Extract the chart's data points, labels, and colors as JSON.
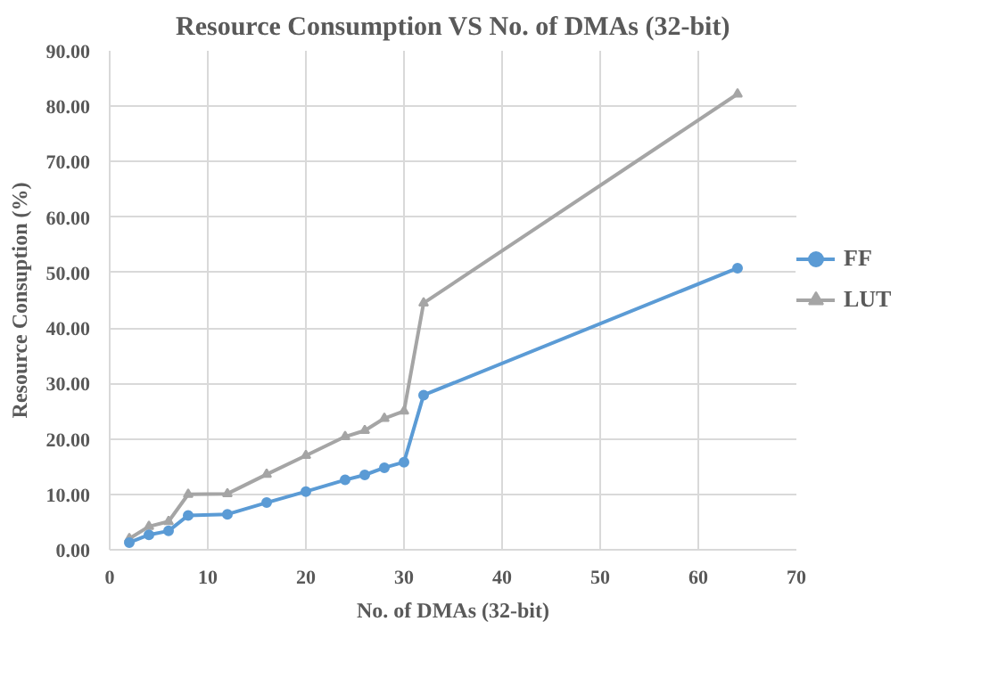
{
  "chart_data": {
    "type": "line",
    "title": "Resource Consumption VS No. of DMAs (32-bit)",
    "xlabel": "No. of DMAs (32-bit)",
    "ylabel": "Resource Consuption (%)",
    "x": [
      2,
      4,
      6,
      8,
      12,
      16,
      20,
      24,
      26,
      28,
      30,
      32,
      64
    ],
    "series": [
      {
        "name": "FF",
        "color": "#5b9bd5",
        "marker": "circle",
        "values": [
          1.3,
          2.7,
          3.4,
          6.2,
          6.4,
          8.5,
          10.5,
          12.6,
          13.5,
          14.8,
          15.8,
          27.9,
          50.8
        ]
      },
      {
        "name": "LUT",
        "color": "#a5a5a5",
        "marker": "triangle",
        "values": [
          2.0,
          4.2,
          5.1,
          10.0,
          10.1,
          13.6,
          17.0,
          20.4,
          21.5,
          23.7,
          25.0,
          44.5,
          82.2
        ]
      }
    ],
    "xlim": [
      0,
      70
    ],
    "xticks": [
      0,
      10,
      20,
      30,
      40,
      50,
      60,
      70
    ],
    "ylim": [
      0,
      90
    ],
    "yticks": [
      {
        "value": 0,
        "label": "0.00"
      },
      {
        "value": 10,
        "label": "10.00"
      },
      {
        "value": 20,
        "label": "20.00"
      },
      {
        "value": 30,
        "label": "30.00"
      },
      {
        "value": 40,
        "label": "40.00"
      },
      {
        "value": 50,
        "label": "50.00"
      },
      {
        "value": 60,
        "label": "60.00"
      },
      {
        "value": 70,
        "label": "70.00"
      },
      {
        "value": 80,
        "label": "80.00"
      },
      {
        "value": 90,
        "label": "90.00"
      }
    ],
    "grid": true,
    "legend": "right",
    "line_style": "solid"
  }
}
